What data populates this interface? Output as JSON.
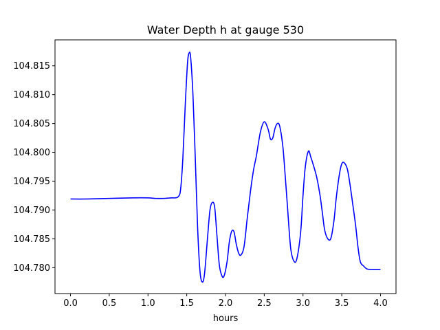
{
  "chart_data": {
    "type": "line",
    "title": "Water Depth h at gauge 530",
    "xlabel": "hours",
    "ylabel": "",
    "xlim": [
      -0.2,
      4.2
    ],
    "ylim": [
      104.7755,
      104.8195
    ],
    "x_ticks": [
      0.0,
      0.5,
      1.0,
      1.5,
      2.0,
      2.5,
      3.0,
      3.5,
      4.0
    ],
    "x_tick_labels": [
      "0.0",
      "0.5",
      "1.0",
      "1.5",
      "2.0",
      "2.5",
      "3.0",
      "3.5",
      "4.0"
    ],
    "y_ticks": [
      104.78,
      104.785,
      104.79,
      104.795,
      104.8,
      104.805,
      104.81,
      104.815
    ],
    "y_tick_labels": [
      "104.780",
      "104.785",
      "104.790",
      "104.795",
      "104.800",
      "104.805",
      "104.810",
      "104.815"
    ],
    "grid": false,
    "series": [
      {
        "color": "#0000ff",
        "x": [
          0.0,
          0.2,
          0.5,
          0.8,
          1.0,
          1.1,
          1.2,
          1.3,
          1.35,
          1.39,
          1.42,
          1.45,
          1.48,
          1.51,
          1.53,
          1.55,
          1.58,
          1.61,
          1.64,
          1.67,
          1.7,
          1.73,
          1.77,
          1.8,
          1.83,
          1.86,
          1.89,
          1.92,
          1.95,
          1.98,
          2.02,
          2.05,
          2.08,
          2.11,
          2.14,
          2.17,
          2.2,
          2.24,
          2.28,
          2.32,
          2.36,
          2.4,
          2.45,
          2.5,
          2.55,
          2.58,
          2.61,
          2.64,
          2.67,
          2.7,
          2.74,
          2.77,
          2.8,
          2.84,
          2.88,
          2.92,
          2.97,
          3.0,
          3.03,
          3.07,
          3.1,
          3.14,
          3.18,
          3.22,
          3.25,
          3.28,
          3.32,
          3.36,
          3.4,
          3.43,
          3.47,
          3.5,
          3.53,
          3.57,
          3.6,
          3.64,
          3.68,
          3.71,
          3.74,
          3.78,
          3.82,
          3.86,
          3.9,
          3.94,
          3.97,
          4.0
        ],
        "y": [
          104.7919,
          104.7919,
          104.792,
          104.7921,
          104.7921,
          104.792,
          104.792,
          104.7921,
          104.7921,
          104.7923,
          104.7935,
          104.799,
          104.808,
          104.8155,
          104.8172,
          104.8165,
          104.81,
          104.799,
          104.787,
          104.7795,
          104.7775,
          104.779,
          104.7855,
          104.79,
          104.7913,
          104.7905,
          104.7855,
          104.7805,
          104.7787,
          104.7785,
          104.781,
          104.7845,
          104.7863,
          104.7862,
          104.784,
          104.7825,
          104.7822,
          104.7837,
          104.7885,
          104.793,
          104.7968,
          104.7995,
          104.8035,
          104.8053,
          104.804,
          104.8023,
          104.8025,
          104.8042,
          104.805,
          104.8045,
          104.801,
          104.796,
          104.7905,
          104.7835,
          104.7812,
          104.7815,
          104.7862,
          104.7925,
          104.7975,
          104.8002,
          104.7992,
          104.7975,
          104.7955,
          104.7925,
          104.7895,
          104.7865,
          104.785,
          104.7851,
          104.7882,
          104.7922,
          104.7962,
          104.798,
          104.7982,
          104.7972,
          104.795,
          104.7912,
          104.7872,
          104.7835,
          104.781,
          104.7803,
          104.7798,
          104.7797,
          104.7797,
          104.7797,
          104.7797,
          104.7797
        ]
      }
    ]
  }
}
